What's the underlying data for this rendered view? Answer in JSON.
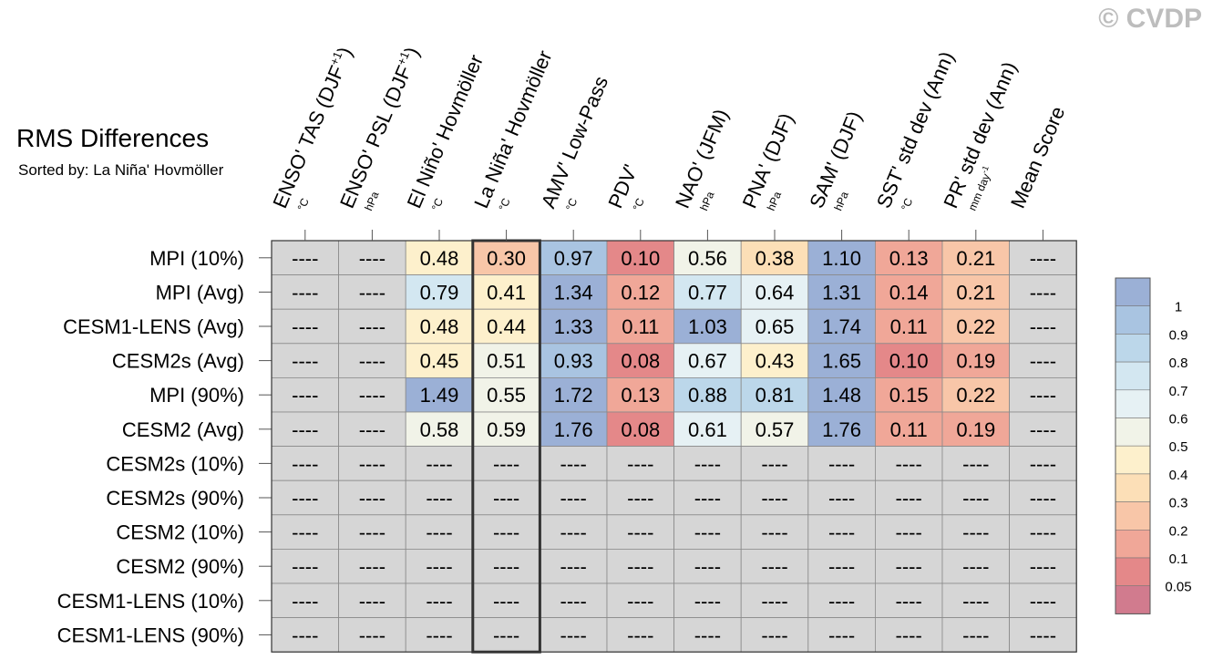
{
  "watermark": "© CVDP",
  "chart_data": {
    "type": "heatmap",
    "title": "RMS Differences",
    "subtitle": "Sorted by: La Niña' Hovmöller",
    "columns": [
      {
        "label": "ENSO' TAS (DJF",
        "sup": "+1",
        "close": ")",
        "unit": "°C"
      },
      {
        "label": "ENSO' PSL (DJF",
        "sup": "+1",
        "close": ")",
        "unit": "hPa"
      },
      {
        "label": "El Niño' Hovmöller",
        "sup": "",
        "close": "",
        "unit": "°C"
      },
      {
        "label": "La Niña' Hovmöller",
        "sup": "",
        "close": "",
        "unit": "°C"
      },
      {
        "label": "AMV' Low-Pass",
        "sup": "",
        "close": "",
        "unit": "°C"
      },
      {
        "label": "PDV'",
        "sup": "",
        "close": "",
        "unit": "°C"
      },
      {
        "label": "NAO' (JFM)",
        "sup": "",
        "close": "",
        "unit": "hPa"
      },
      {
        "label": "PNA' (DJF)",
        "sup": "",
        "close": "",
        "unit": "hPa"
      },
      {
        "label": "SAM' (DJF)",
        "sup": "",
        "close": "",
        "unit": "hPa"
      },
      {
        "label": "SST' std dev (Ann)",
        "sup": "",
        "close": "",
        "unit": "°C"
      },
      {
        "label": "PR' std dev (Ann)",
        "sup": "",
        "close": "",
        "unit": "mm day",
        "unit_sup": "-1"
      },
      {
        "label": "Mean Score",
        "sup": "",
        "close": "",
        "unit": ""
      }
    ],
    "rows": [
      {
        "name": "MPI (10%)",
        "values": [
          "----",
          "----",
          "0.48",
          "0.30",
          "0.97",
          "0.10",
          "0.56",
          "0.38",
          "1.10",
          "0.13",
          "0.21",
          "----"
        ]
      },
      {
        "name": "MPI (Avg)",
        "values": [
          "----",
          "----",
          "0.79",
          "0.41",
          "1.34",
          "0.12",
          "0.77",
          "0.64",
          "1.31",
          "0.14",
          "0.21",
          "----"
        ]
      },
      {
        "name": "CESM1-LENS (Avg)",
        "values": [
          "----",
          "----",
          "0.48",
          "0.44",
          "1.33",
          "0.11",
          "1.03",
          "0.65",
          "1.74",
          "0.11",
          "0.22",
          "----"
        ]
      },
      {
        "name": "CESM2s (Avg)",
        "values": [
          "----",
          "----",
          "0.45",
          "0.51",
          "0.93",
          "0.08",
          "0.67",
          "0.43",
          "1.65",
          "0.10",
          "0.19",
          "----"
        ]
      },
      {
        "name": "MPI (90%)",
        "values": [
          "----",
          "----",
          "1.49",
          "0.55",
          "1.72",
          "0.13",
          "0.88",
          "0.81",
          "1.48",
          "0.15",
          "0.22",
          "----"
        ]
      },
      {
        "name": "CESM2 (Avg)",
        "values": [
          "----",
          "----",
          "0.58",
          "0.59",
          "1.76",
          "0.08",
          "0.61",
          "0.57",
          "1.76",
          "0.11",
          "0.19",
          "----"
        ]
      },
      {
        "name": "CESM2s (10%)",
        "values": [
          "----",
          "----",
          "----",
          "----",
          "----",
          "----",
          "----",
          "----",
          "----",
          "----",
          "----",
          "----"
        ]
      },
      {
        "name": "CESM2s (90%)",
        "values": [
          "----",
          "----",
          "----",
          "----",
          "----",
          "----",
          "----",
          "----",
          "----",
          "----",
          "----",
          "----"
        ]
      },
      {
        "name": "CESM2 (10%)",
        "values": [
          "----",
          "----",
          "----",
          "----",
          "----",
          "----",
          "----",
          "----",
          "----",
          "----",
          "----",
          "----"
        ]
      },
      {
        "name": "CESM2 (90%)",
        "values": [
          "----",
          "----",
          "----",
          "----",
          "----",
          "----",
          "----",
          "----",
          "----",
          "----",
          "----",
          "----"
        ]
      },
      {
        "name": "CESM1-LENS (10%)",
        "values": [
          "----",
          "----",
          "----",
          "----",
          "----",
          "----",
          "----",
          "----",
          "----",
          "----",
          "----",
          "----"
        ]
      },
      {
        "name": "CESM1-LENS (90%)",
        "values": [
          "----",
          "----",
          "----",
          "----",
          "----",
          "----",
          "----",
          "----",
          "----",
          "----",
          "----",
          "----"
        ]
      }
    ],
    "highlight_column": 3,
    "missing_color": "#d6d6d6",
    "colorbar": {
      "labels": [
        "1",
        "0.9",
        "0.8",
        "0.7",
        "0.6",
        "0.5",
        "0.4",
        "0.3",
        "0.2",
        "0.1",
        "0.05"
      ],
      "colors": [
        "#9bb0d6",
        "#a9c4e1",
        "#bcd7ea",
        "#d3e7f1",
        "#e6f1f4",
        "#f1f3e8",
        "#fdf0cc",
        "#fcdfb7",
        "#f8c6a8",
        "#f0a798",
        "#e48889",
        "#d17b8e"
      ]
    }
  }
}
